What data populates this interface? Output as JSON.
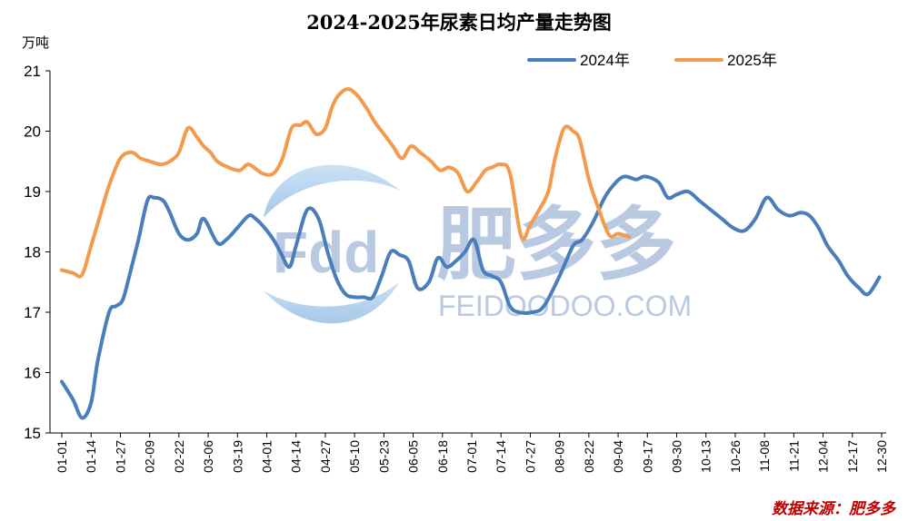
{
  "chart_data": {
    "type": "line",
    "title": "2024-2025年尿素日均产量走势图",
    "ylabel": "万吨",
    "ylim": [
      15,
      21
    ],
    "yticks": [
      15,
      16,
      17,
      18,
      19,
      20,
      21
    ],
    "grid": false,
    "legend_position": "top-right",
    "categories": [
      "01-01",
      "01-14",
      "01-27",
      "02-09",
      "02-22",
      "03-06",
      "03-19",
      "04-01",
      "04-14",
      "04-27",
      "05-10",
      "05-23",
      "06-05",
      "06-18",
      "07-01",
      "07-14",
      "07-27",
      "08-09",
      "08-22",
      "09-04",
      "09-17",
      "09-30",
      "10-13",
      "10-26",
      "11-08",
      "11-21",
      "12-04",
      "12-17",
      "12-30"
    ],
    "series": [
      {
        "name": "2024年",
        "color": "#4a7ebb",
        "x": [
          1,
          6,
          10,
          14,
          17,
          22,
          25,
          28,
          31,
          35,
          39,
          42,
          46,
          49,
          53,
          57,
          61,
          64,
          70,
          74,
          79,
          84,
          87,
          91,
          95,
          98,
          102,
          105,
          110,
          115,
          119,
          123,
          127,
          131,
          135,
          139,
          143,
          147,
          151,
          155,
          159,
          164,
          168,
          172,
          176,
          180,
          184,
          188,
          192,
          196,
          200,
          204,
          210,
          215,
          222,
          228,
          232,
          237,
          242,
          247,
          251,
          256,
          260,
          266,
          270,
          274,
          279,
          284,
          289,
          294,
          299,
          304,
          309,
          314,
          319,
          324,
          329,
          333,
          337,
          341,
          346,
          350,
          355,
          359,
          364
        ],
        "values": [
          15.85,
          15.55,
          15.25,
          15.5,
          16.2,
          17.0,
          17.1,
          17.2,
          17.6,
          18.2,
          18.85,
          18.9,
          18.85,
          18.65,
          18.3,
          18.2,
          18.3,
          18.55,
          18.15,
          18.2,
          18.4,
          18.6,
          18.55,
          18.4,
          18.2,
          18.0,
          17.75,
          18.1,
          18.7,
          18.55,
          18.0,
          17.55,
          17.3,
          17.25,
          17.25,
          17.25,
          17.6,
          18.0,
          17.95,
          17.85,
          17.4,
          17.5,
          17.9,
          17.75,
          17.85,
          18.0,
          18.2,
          17.7,
          17.6,
          17.5,
          17.1,
          17.0,
          17.0,
          17.1,
          17.6,
          18.1,
          18.2,
          18.5,
          18.9,
          19.15,
          19.25,
          19.2,
          19.25,
          19.15,
          18.9,
          18.95,
          19.0,
          18.85,
          18.7,
          18.55,
          18.4,
          18.35,
          18.55,
          18.9,
          18.7,
          18.6,
          18.65,
          18.6,
          18.4,
          18.1,
          17.85,
          17.6,
          17.4,
          17.3,
          17.58
        ]
      },
      {
        "name": "2025年",
        "color": "#f29b4c",
        "x": [
          1,
          6,
          10,
          14,
          18,
          22,
          27,
          32,
          36,
          40,
          45,
          49,
          53,
          57,
          61,
          64,
          67,
          70,
          75,
          80,
          84,
          90,
          95,
          99,
          103,
          107,
          110,
          114,
          118,
          121,
          124,
          128,
          132,
          136,
          140,
          144,
          148,
          152,
          156,
          160,
          165,
          169,
          173,
          177,
          181,
          185,
          189,
          192,
          196,
          200,
          205,
          209,
          213,
          217,
          220,
          224,
          228,
          231,
          235,
          239,
          244,
          248,
          253
        ],
        "values": [
          17.7,
          17.65,
          17.62,
          18.1,
          18.6,
          19.1,
          19.55,
          19.65,
          19.55,
          19.5,
          19.45,
          19.5,
          19.65,
          20.05,
          19.9,
          19.75,
          19.65,
          19.5,
          19.4,
          19.35,
          19.45,
          19.3,
          19.3,
          19.55,
          20.05,
          20.1,
          20.15,
          19.95,
          20.05,
          20.4,
          20.6,
          20.7,
          20.6,
          20.4,
          20.15,
          19.95,
          19.75,
          19.55,
          19.75,
          19.65,
          19.5,
          19.35,
          19.4,
          19.3,
          19.0,
          19.15,
          19.35,
          19.4,
          19.45,
          19.3,
          18.25,
          18.45,
          18.7,
          19.0,
          19.55,
          20.05,
          20.0,
          19.85,
          19.2,
          18.75,
          18.28,
          18.3,
          18.25
        ]
      }
    ],
    "source": "数据来源：肥多多"
  },
  "watermark": {
    "logo_text": "Fdd",
    "cn_text": "肥多多",
    "en_text": "FEIDOODOO.COM"
  }
}
